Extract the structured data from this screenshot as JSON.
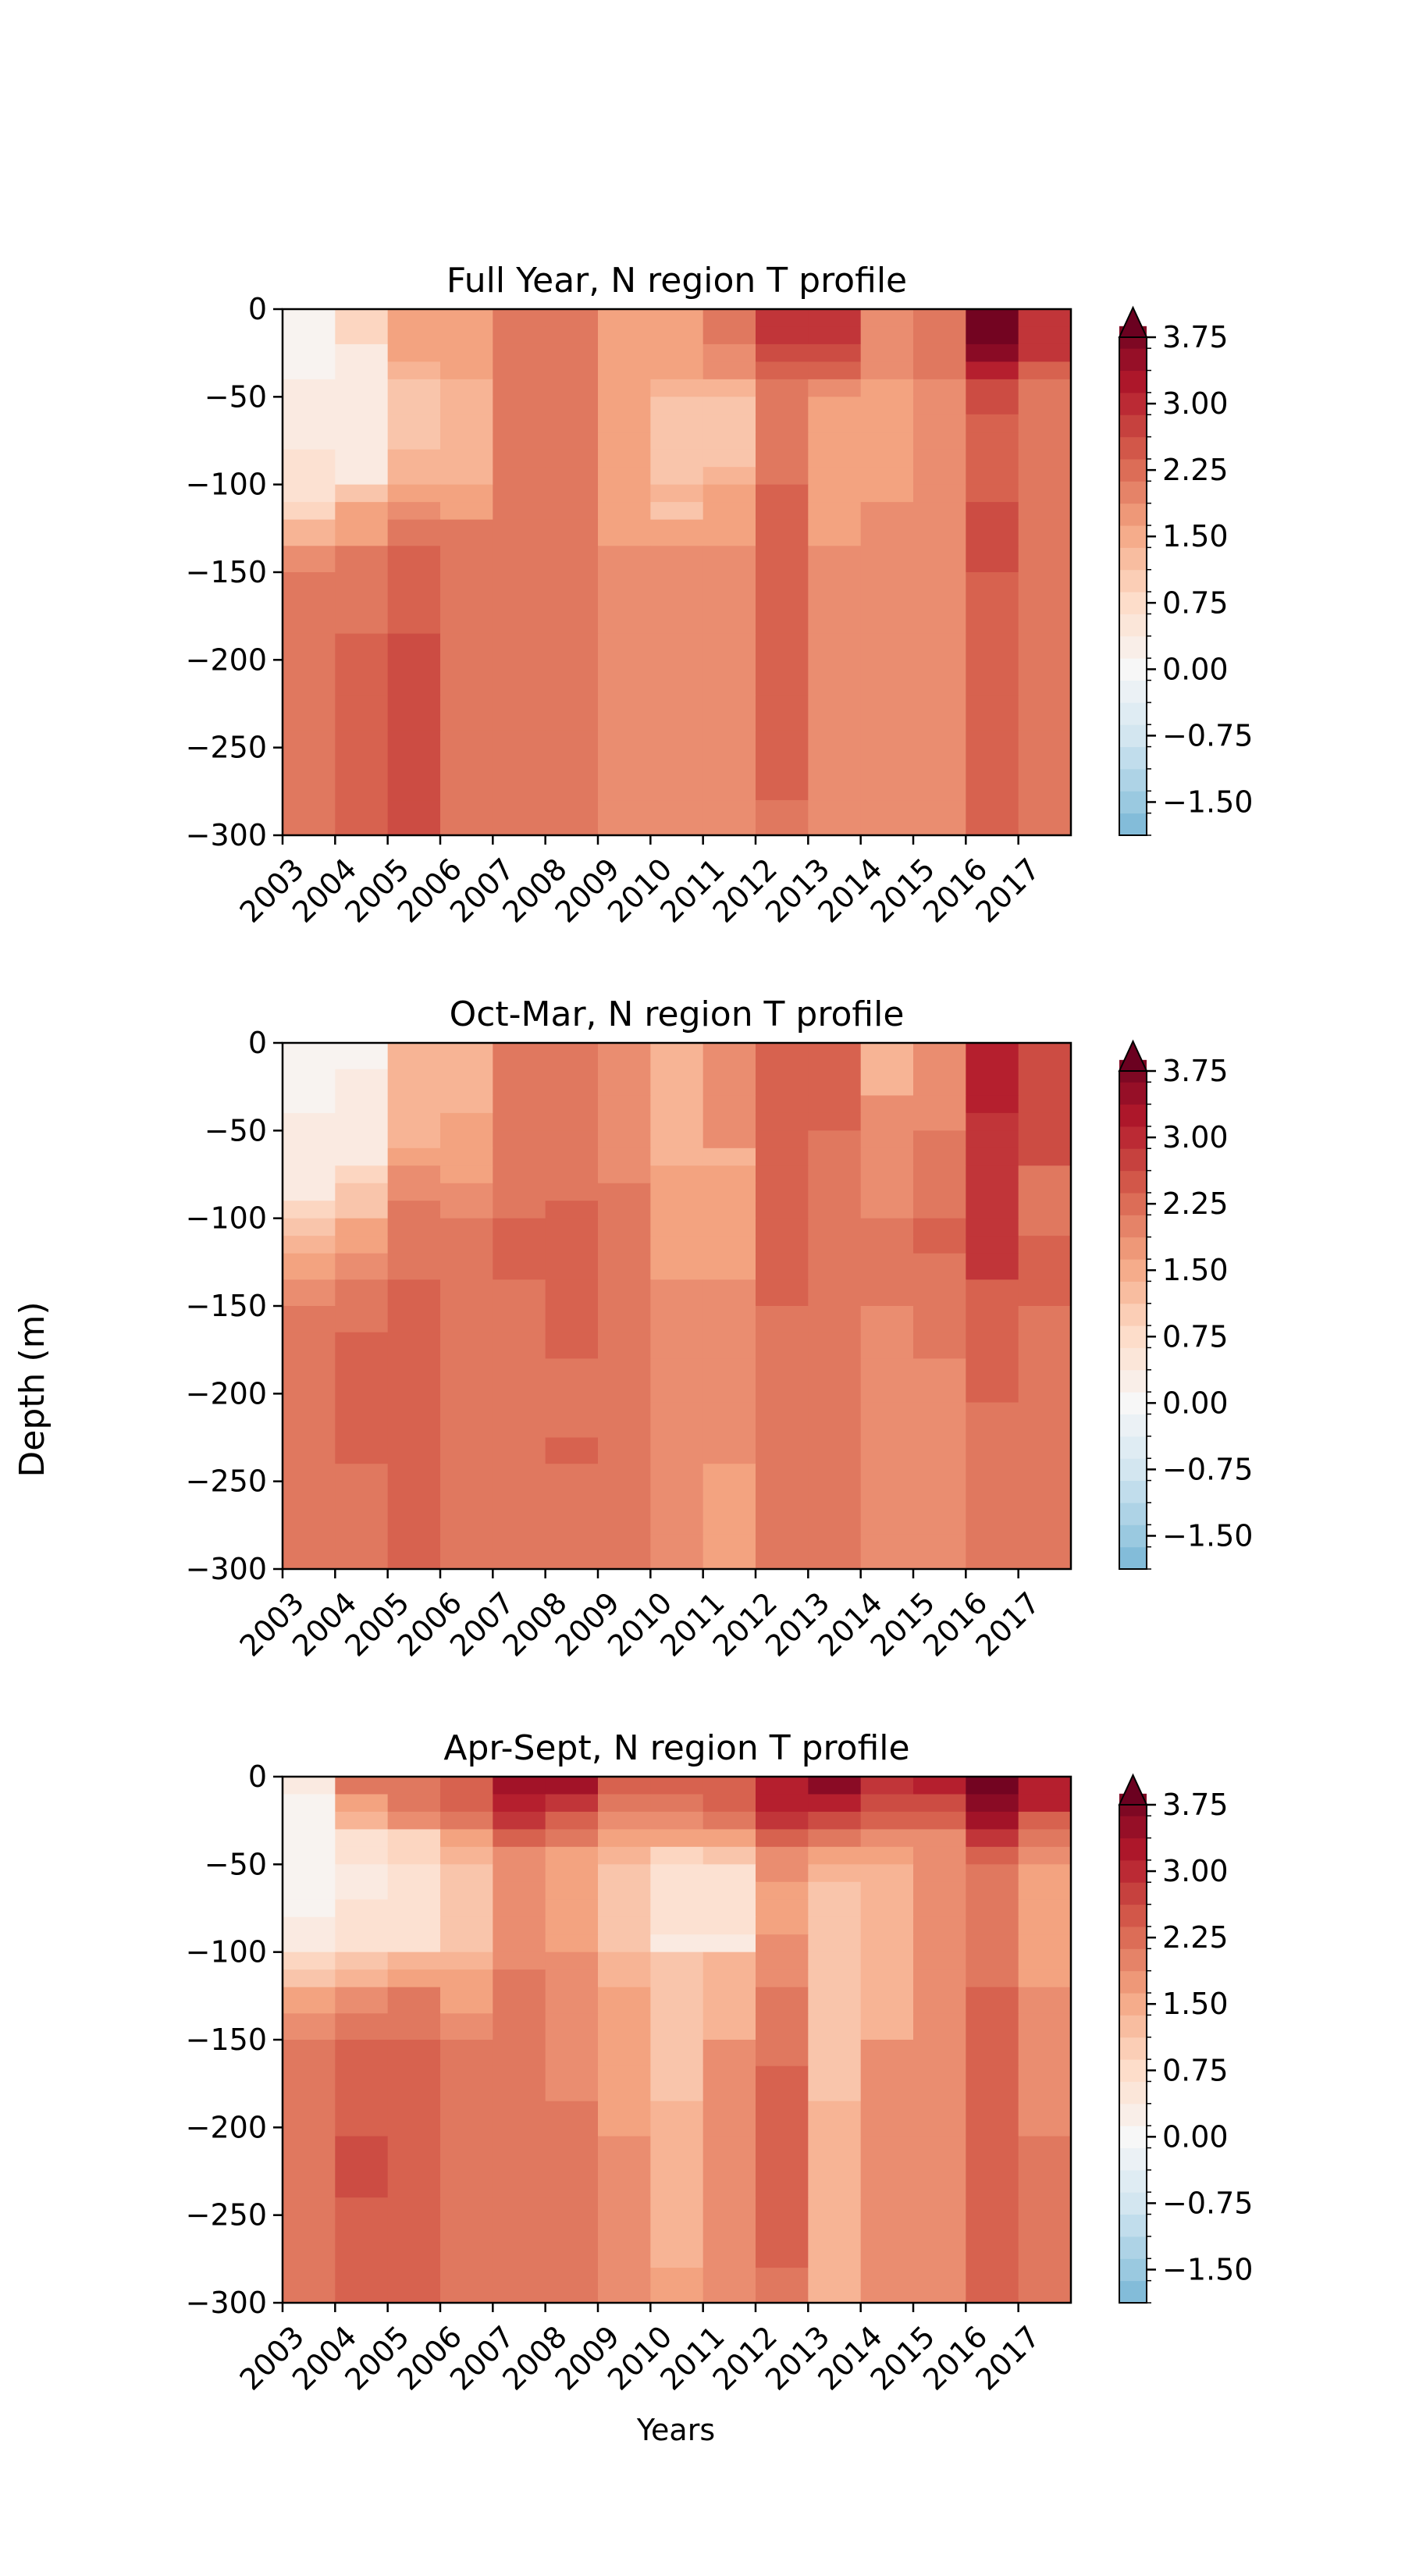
{
  "figure": {
    "ylabel": "Depth (m)",
    "xlabel": "Years",
    "color_scale": "RdBu_r"
  },
  "chart_data": [
    {
      "type": "heatmap",
      "title": "Full Year, N region T profile",
      "xlabel": "",
      "ylabel": "Depth (m)",
      "x": [
        2003,
        2004,
        2005,
        2006,
        2007,
        2008,
        2009,
        2010,
        2011,
        2012,
        2013,
        2014,
        2015,
        2016,
        2017
      ],
      "xlim": [
        2003,
        2018
      ],
      "yticks": [
        0,
        -50,
        -100,
        -150,
        -200,
        -250,
        -300
      ],
      "ylim": [
        -300,
        0
      ],
      "y_edges": [
        0,
        -10,
        -20,
        -30,
        -40,
        -50,
        -60,
        -70,
        -80,
        -90,
        -100,
        -110,
        -120,
        -135,
        -150,
        -185,
        -220,
        -240,
        -280,
        -300
      ],
      "values": [
        [
          0.1,
          0.95,
          1.55,
          1.6,
          2.1,
          2.1,
          1.65,
          1.7,
          2.0,
          2.9,
          2.9,
          1.95,
          2.05,
          3.85,
          2.8
        ],
        [
          0.1,
          0.95,
          1.55,
          1.6,
          2.1,
          2.1,
          1.65,
          1.7,
          2.0,
          2.9,
          2.9,
          1.95,
          2.05,
          3.85,
          2.8
        ],
        [
          0.05,
          0.4,
          1.55,
          1.6,
          2.15,
          2.15,
          1.6,
          1.6,
          1.9,
          2.6,
          2.6,
          1.9,
          2.1,
          3.5,
          2.8
        ],
        [
          0.05,
          0.4,
          1.3,
          1.6,
          2.15,
          2.15,
          1.6,
          1.6,
          1.9,
          2.3,
          2.3,
          1.9,
          2.1,
          3.0,
          2.3
        ],
        [
          0.3,
          0.4,
          1.15,
          1.4,
          2.0,
          2.0,
          1.55,
          1.3,
          1.3,
          2.15,
          1.85,
          1.7,
          1.85,
          2.7,
          2.2
        ],
        [
          0.3,
          0.4,
          1.15,
          1.4,
          2.0,
          2.0,
          1.55,
          1.1,
          1.1,
          2.1,
          1.7,
          1.7,
          1.85,
          2.55,
          2.05
        ],
        [
          0.3,
          0.4,
          1.15,
          1.4,
          2.0,
          2.0,
          1.55,
          1.1,
          1.1,
          2.1,
          1.7,
          1.7,
          1.85,
          2.3,
          2.05
        ],
        [
          0.3,
          0.4,
          1.15,
          1.4,
          2.0,
          2.0,
          1.55,
          1.1,
          1.1,
          2.1,
          1.7,
          1.7,
          1.85,
          2.3,
          2.05
        ],
        [
          0.5,
          0.4,
          1.3,
          1.4,
          2.0,
          2.0,
          1.55,
          1.1,
          1.1,
          2.1,
          1.7,
          1.7,
          1.85,
          2.3,
          2.05
        ],
        [
          0.5,
          0.4,
          1.3,
          1.4,
          2.0,
          2.0,
          1.55,
          1.0,
          1.3,
          2.1,
          1.7,
          1.7,
          1.85,
          2.3,
          2.05
        ],
        [
          0.5,
          1.05,
          1.5,
          1.55,
          2.15,
          2.05,
          1.7,
          1.45,
          1.65,
          2.25,
          1.7,
          1.7,
          1.75,
          2.45,
          2.05
        ],
        [
          0.95,
          1.5,
          1.8,
          1.65,
          2.15,
          2.15,
          1.7,
          1.2,
          1.7,
          2.3,
          1.7,
          1.8,
          1.75,
          2.55,
          2.05
        ],
        [
          1.4,
          1.7,
          2.0,
          2.0,
          2.15,
          2.15,
          1.7,
          1.7,
          1.7,
          2.3,
          1.7,
          1.8,
          1.75,
          2.55,
          2.05
        ],
        [
          1.75,
          2.0,
          2.3,
          2.0,
          2.15,
          2.15,
          1.75,
          1.8,
          1.8,
          2.3,
          1.75,
          1.75,
          1.8,
          2.55,
          2.1
        ],
        [
          2.05,
          2.15,
          2.4,
          2.0,
          2.2,
          2.2,
          1.75,
          1.8,
          1.8,
          2.3,
          1.75,
          1.75,
          1.8,
          2.3,
          2.1
        ],
        [
          2.05,
          2.45,
          2.5,
          2.2,
          2.2,
          2.2,
          1.75,
          1.8,
          1.8,
          2.3,
          1.75,
          1.75,
          1.8,
          2.3,
          2.1
        ],
        [
          2.05,
          2.45,
          2.5,
          2.2,
          2.2,
          2.2,
          1.75,
          1.8,
          1.8,
          2.3,
          1.75,
          1.75,
          1.8,
          2.3,
          2.1
        ],
        [
          2.05,
          2.25,
          2.5,
          2.2,
          2.2,
          2.2,
          1.75,
          1.8,
          1.8,
          2.3,
          1.75,
          1.75,
          1.8,
          2.3,
          2.1
        ],
        [
          2.05,
          2.25,
          2.5,
          2.2,
          2.2,
          2.2,
          1.75,
          1.8,
          1.8,
          2.05,
          1.85,
          1.75,
          1.8,
          2.3,
          2.1
        ]
      ],
      "colorbar": {
        "ticks": [
          3.75,
          3.0,
          2.25,
          1.5,
          0.75,
          0.0,
          -0.75,
          -1.5
        ],
        "tick_labels": [
          "3.75",
          "3.00",
          "2.25",
          "1.50",
          "0.75",
          "0.00",
          "−0.75",
          "−1.50"
        ],
        "range": [
          -1.875,
          3.75
        ],
        "extend": "max"
      }
    },
    {
      "type": "heatmap",
      "title": "Oct-Mar, N region T profile",
      "xlabel": "",
      "ylabel": "Depth (m)",
      "x": [
        2003,
        2004,
        2005,
        2006,
        2007,
        2008,
        2009,
        2010,
        2011,
        2012,
        2013,
        2014,
        2015,
        2016,
        2017
      ],
      "xlim": [
        2003,
        2018
      ],
      "yticks": [
        0,
        -50,
        -100,
        -150,
        -200,
        -250,
        -300
      ],
      "ylim": [
        -300,
        0
      ],
      "y_edges": [
        0,
        -15,
        -30,
        -40,
        -50,
        -60,
        -70,
        -80,
        -90,
        -100,
        -110,
        -120,
        -135,
        -150,
        -165,
        -180,
        -205,
        -225,
        -240,
        -280,
        -300
      ],
      "values": [
        [
          0.1,
          0.2,
          1.45,
          1.45,
          2.05,
          2.05,
          1.85,
          1.45,
          1.8,
          2.25,
          2.25,
          1.3,
          1.9,
          3.1,
          2.6
        ],
        [
          0.2,
          0.35,
          1.45,
          1.45,
          2.05,
          2.05,
          1.85,
          1.45,
          1.8,
          2.25,
          2.25,
          1.3,
          1.9,
          3.1,
          2.6
        ],
        [
          0.2,
          0.35,
          1.45,
          1.45,
          2.05,
          2.05,
          1.85,
          1.45,
          1.8,
          2.25,
          2.25,
          1.75,
          1.9,
          3.1,
          2.6
        ],
        [
          0.45,
          0.35,
          1.45,
          1.7,
          2.05,
          2.05,
          1.85,
          1.45,
          1.8,
          2.25,
          2.25,
          1.75,
          1.9,
          2.8,
          2.6
        ],
        [
          0.45,
          0.35,
          1.45,
          1.7,
          2.2,
          2.05,
          1.85,
          1.45,
          1.8,
          2.25,
          2.2,
          1.75,
          2.1,
          2.8,
          2.6
        ],
        [
          0.45,
          0.35,
          1.7,
          1.7,
          2.2,
          2.2,
          1.85,
          1.35,
          1.35,
          2.25,
          2.2,
          1.75,
          2.1,
          2.8,
          2.6
        ],
        [
          0.45,
          0.95,
          1.85,
          1.7,
          2.2,
          2.2,
          1.85,
          1.65,
          1.65,
          2.25,
          2.2,
          1.75,
          2.1,
          2.8,
          2.05
        ],
        [
          0.45,
          1.2,
          1.85,
          1.9,
          2.2,
          2.2,
          2.05,
          1.65,
          1.65,
          2.25,
          2.2,
          1.75,
          2.1,
          2.8,
          2.05
        ],
        [
          0.95,
          1.2,
          2.1,
          1.9,
          2.2,
          2.4,
          2.05,
          1.65,
          1.65,
          2.25,
          2.2,
          1.75,
          2.1,
          2.8,
          2.05
        ],
        [
          1.1,
          1.5,
          2.1,
          2.1,
          2.4,
          2.4,
          2.2,
          1.7,
          1.7,
          2.45,
          2.2,
          2.1,
          2.25,
          2.8,
          2.05
        ],
        [
          1.35,
          1.7,
          2.2,
          2.1,
          2.4,
          2.4,
          2.2,
          1.7,
          1.7,
          2.45,
          2.2,
          2.1,
          2.25,
          2.8,
          2.35
        ],
        [
          1.6,
          1.85,
          2.2,
          2.1,
          2.4,
          2.4,
          2.2,
          1.7,
          1.7,
          2.45,
          2.2,
          2.1,
          2.05,
          2.8,
          2.35
        ],
        [
          1.8,
          2.2,
          2.45,
          2.15,
          2.15,
          2.4,
          2.05,
          1.8,
          1.8,
          2.45,
          2.15,
          2.15,
          2.05,
          2.4,
          2.35
        ],
        [
          2.05,
          2.2,
          2.45,
          2.15,
          2.15,
          2.4,
          2.05,
          1.8,
          1.8,
          2.2,
          2.15,
          1.8,
          2.05,
          2.4,
          2.15
        ],
        [
          2.05,
          2.4,
          2.45,
          2.15,
          2.15,
          2.4,
          2.05,
          1.8,
          1.8,
          2.2,
          2.15,
          1.8,
          2.05,
          2.4,
          2.15
        ],
        [
          2.05,
          2.4,
          2.45,
          2.15,
          2.15,
          2.2,
          2.05,
          1.8,
          1.8,
          2.2,
          2.15,
          1.8,
          1.8,
          2.4,
          2.15
        ],
        [
          2.05,
          2.4,
          2.45,
          2.15,
          2.15,
          2.2,
          2.05,
          1.8,
          1.8,
          2.2,
          2.15,
          1.8,
          1.8,
          2.2,
          2.15
        ],
        [
          2.05,
          2.4,
          2.45,
          2.15,
          2.15,
          2.4,
          2.05,
          1.8,
          1.8,
          2.2,
          2.15,
          1.8,
          1.8,
          2.2,
          2.15
        ],
        [
          2.05,
          2.2,
          2.45,
          2.15,
          2.15,
          2.15,
          2.05,
          1.8,
          1.65,
          2.2,
          2.15,
          1.8,
          1.8,
          2.2,
          2.15
        ],
        [
          2.05,
          2.2,
          2.45,
          2.15,
          2.15,
          2.15,
          2.05,
          1.8,
          1.65,
          2.05,
          2.15,
          1.8,
          1.8,
          2.2,
          2.15
        ]
      ],
      "colorbar": {
        "ticks": [
          3.75,
          3.0,
          2.25,
          1.5,
          0.75,
          0.0,
          -0.75,
          -1.5
        ],
        "tick_labels": [
          "3.75",
          "3.00",
          "2.25",
          "1.50",
          "0.75",
          "0.00",
          "−0.75",
          "−1.50"
        ],
        "range": [
          -1.875,
          3.75
        ],
        "extend": "max"
      }
    },
    {
      "type": "heatmap",
      "title": "Apr-Sept, N region T profile",
      "xlabel": "Years",
      "ylabel": "Depth (m)",
      "x": [
        2003,
        2004,
        2005,
        2006,
        2007,
        2008,
        2009,
        2010,
        2011,
        2012,
        2013,
        2014,
        2015,
        2016,
        2017
      ],
      "xlim": [
        2003,
        2018
      ],
      "yticks": [
        0,
        -50,
        -100,
        -150,
        -200,
        -250,
        -300
      ],
      "ylim": [
        -300,
        0
      ],
      "y_edges": [
        0,
        -10,
        -20,
        -30,
        -40,
        -50,
        -60,
        -70,
        -80,
        -90,
        -100,
        -110,
        -120,
        -135,
        -150,
        -165,
        -185,
        -205,
        -240,
        -280,
        -300
      ],
      "values": [
        [
          0.4,
          2.05,
          2.05,
          2.4,
          3.35,
          3.35,
          2.25,
          2.25,
          2.45,
          3.1,
          3.5,
          2.9,
          3.1,
          3.85,
          3.1
        ],
        [
          0.15,
          1.7,
          2.05,
          2.25,
          3.1,
          2.9,
          2.05,
          2.05,
          2.25,
          3.1,
          3.1,
          2.7,
          2.7,
          3.7,
          3.1
        ],
        [
          0.15,
          1.35,
          1.75,
          2.05,
          2.75,
          2.45,
          1.85,
          1.85,
          2.0,
          2.8,
          2.55,
          2.35,
          2.35,
          3.35,
          2.45
        ],
        [
          0.05,
          0.6,
          0.95,
          1.6,
          2.25,
          2.05,
          1.7,
          1.5,
          1.7,
          2.25,
          2.0,
          1.95,
          1.95,
          2.75,
          2.05
        ],
        [
          0.05,
          0.6,
          0.85,
          1.35,
          1.9,
          1.7,
          1.35,
          0.75,
          1.0,
          1.9,
          1.55,
          1.55,
          1.75,
          2.35,
          1.8
        ],
        [
          0.05,
          0.45,
          0.6,
          1.2,
          1.75,
          1.6,
          1.2,
          0.6,
          0.6,
          1.8,
          1.35,
          1.35,
          1.75,
          2.05,
          1.7
        ],
        [
          0.15,
          0.45,
          0.6,
          1.2,
          1.75,
          1.6,
          1.2,
          0.6,
          0.6,
          1.6,
          1.1,
          1.35,
          1.75,
          2.05,
          1.7
        ],
        [
          0.15,
          0.6,
          0.6,
          1.2,
          1.75,
          1.6,
          1.2,
          0.6,
          0.6,
          1.6,
          1.1,
          1.35,
          1.75,
          2.05,
          1.7
        ],
        [
          0.3,
          0.6,
          0.6,
          1.2,
          1.75,
          1.6,
          1.2,
          0.6,
          0.6,
          1.6,
          1.1,
          1.35,
          1.75,
          2.05,
          1.7
        ],
        [
          0.3,
          0.6,
          0.6,
          1.2,
          1.75,
          1.6,
          1.2,
          0.3,
          0.3,
          1.9,
          1.1,
          1.35,
          1.75,
          2.05,
          1.7
        ],
        [
          0.75,
          1.05,
          1.45,
          1.45,
          1.75,
          1.75,
          1.35,
          1.0,
          1.25,
          1.9,
          1.1,
          1.35,
          1.75,
          2.05,
          1.7
        ],
        [
          1.1,
          1.45,
          1.65,
          1.65,
          2.05,
          1.75,
          1.35,
          1.0,
          1.25,
          1.9,
          1.1,
          1.35,
          1.75,
          2.05,
          1.7
        ],
        [
          1.55,
          1.75,
          2.0,
          1.65,
          2.05,
          1.75,
          1.65,
          1.1,
          1.35,
          2.1,
          1.1,
          1.35,
          1.75,
          2.3,
          1.75
        ],
        [
          1.85,
          2.0,
          2.0,
          1.75,
          2.05,
          1.75,
          1.65,
          1.1,
          1.35,
          2.1,
          1.1,
          1.35,
          1.75,
          2.3,
          1.75
        ],
        [
          2.05,
          2.25,
          2.25,
          2.05,
          2.05,
          1.75,
          1.65,
          1.1,
          1.75,
          2.1,
          1.1,
          1.75,
          1.75,
          2.3,
          1.75
        ],
        [
          2.05,
          2.25,
          2.25,
          2.05,
          2.05,
          1.75,
          1.65,
          1.1,
          1.75,
          2.3,
          1.1,
          1.75,
          1.75,
          2.3,
          1.75
        ],
        [
          2.05,
          2.25,
          2.45,
          2.05,
          2.05,
          2.05,
          1.65,
          1.35,
          1.75,
          2.3,
          1.35,
          1.75,
          1.75,
          2.3,
          1.75
        ],
        [
          2.05,
          2.5,
          2.45,
          2.05,
          2.05,
          2.05,
          1.8,
          1.35,
          1.75,
          2.3,
          1.35,
          1.75,
          1.75,
          2.3,
          2.05
        ],
        [
          2.05,
          2.25,
          2.45,
          2.05,
          2.05,
          2.05,
          1.8,
          1.35,
          1.75,
          2.3,
          1.35,
          1.75,
          1.75,
          2.3,
          2.05
        ],
        [
          2.05,
          2.25,
          2.45,
          2.05,
          2.05,
          2.05,
          1.8,
          1.65,
          1.75,
          2.05,
          1.35,
          1.75,
          1.75,
          2.3,
          2.05
        ]
      ],
      "colorbar": {
        "ticks": [
          3.75,
          3.0,
          2.25,
          1.5,
          0.75,
          0.0,
          -0.75,
          -1.5
        ],
        "tick_labels": [
          "3.75",
          "3.00",
          "2.25",
          "1.50",
          "0.75",
          "0.00",
          "−0.75",
          "−1.50"
        ],
        "range": [
          -1.875,
          3.75
        ],
        "extend": "max"
      }
    }
  ]
}
